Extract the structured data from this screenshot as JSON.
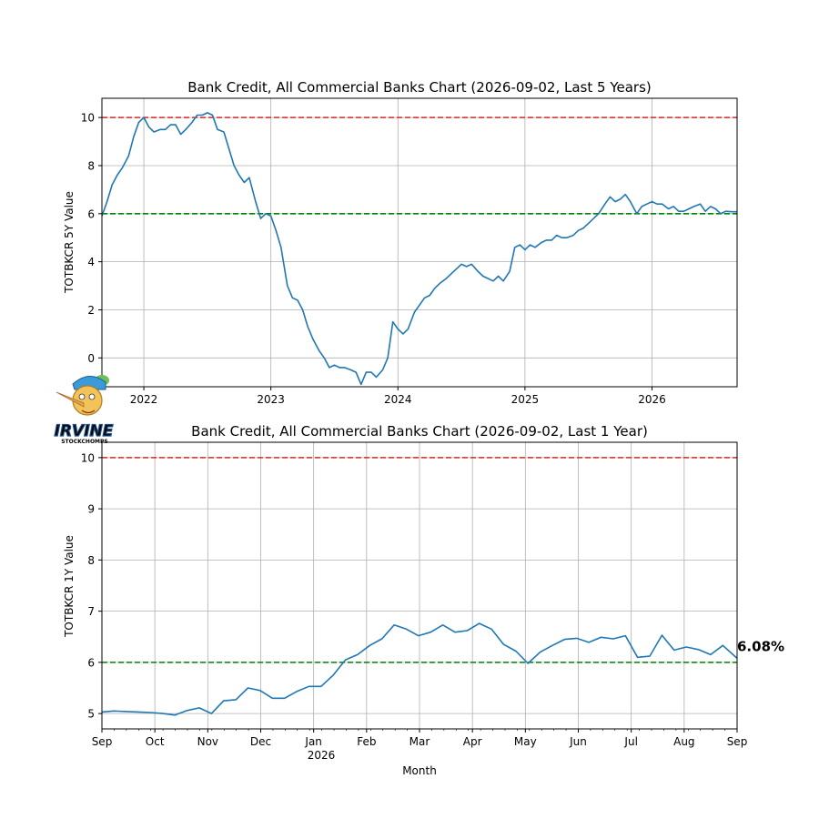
{
  "charts": [
    {
      "title": "Bank Credit, All Commercial Banks Chart (2026-09-02, Last 5 Years)",
      "ylabel": "TOTBKCR 5Y Value",
      "x_ticks": [
        "2022",
        "2023",
        "2024",
        "2025",
        "2026"
      ],
      "y_ticks": [
        "0",
        "2",
        "4",
        "6",
        "8",
        "10"
      ]
    },
    {
      "title": "Bank Credit, All Commercial Banks Chart (2026-09-02, Last 1 Year)",
      "ylabel": "TOTBKCR 1Y Value",
      "xlabel": "Month",
      "x_ticks": [
        "Sep",
        "Oct",
        "Nov",
        "Dec",
        "Jan",
        "Feb",
        "Mar",
        "Apr",
        "May",
        "Jun",
        "Jul",
        "Aug",
        "Sep"
      ],
      "year_label": "2026",
      "y_ticks": [
        "5",
        "6",
        "7",
        "8",
        "9",
        "10"
      ],
      "last_value_label": "6.08%"
    }
  ],
  "logo": {
    "text": "IRVINE",
    "subtext": "STOCKCHOMPS"
  },
  "colors": {
    "line": "#1f77b4",
    "upper_ref": "#d62728",
    "lower_ref": "#008000",
    "grid": "#b0b0b0"
  },
  "chart_data": [
    {
      "type": "line",
      "title": "Bank Credit, All Commercial Banks Chart (2026-09-02, Last 5 Years)",
      "xlabel": "",
      "ylabel": "TOTBKCR 5Y Value",
      "xlim": [
        2021.67,
        2026.67
      ],
      "ylim": [
        -1.2,
        10.8
      ],
      "grid": true,
      "reference_lines": [
        {
          "y": 10,
          "color": "#d62728",
          "style": "dashed"
        },
        {
          "y": 6,
          "color": "#008000",
          "style": "dashed"
        }
      ],
      "x": [
        2021.67,
        2021.71,
        2021.75,
        2021.79,
        2021.83,
        2021.88,
        2021.92,
        2021.96,
        2022.0,
        2022.04,
        2022.08,
        2022.13,
        2022.17,
        2022.21,
        2022.25,
        2022.29,
        2022.33,
        2022.38,
        2022.42,
        2022.46,
        2022.5,
        2022.54,
        2022.58,
        2022.63,
        2022.67,
        2022.71,
        2022.75,
        2022.79,
        2022.83,
        2022.88,
        2022.92,
        2022.96,
        2023.0,
        2023.04,
        2023.08,
        2023.13,
        2023.17,
        2023.21,
        2023.25,
        2023.29,
        2023.33,
        2023.38,
        2023.42,
        2023.46,
        2023.5,
        2023.54,
        2023.58,
        2023.63,
        2023.67,
        2023.71,
        2023.75,
        2023.79,
        2023.83,
        2023.88,
        2023.92,
        2023.96,
        2024.0,
        2024.04,
        2024.08,
        2024.13,
        2024.17,
        2024.21,
        2024.25,
        2024.29,
        2024.33,
        2024.38,
        2024.42,
        2024.46,
        2024.5,
        2024.54,
        2024.58,
        2024.63,
        2024.67,
        2024.71,
        2024.75,
        2024.79,
        2024.83,
        2024.88,
        2024.92,
        2024.96,
        2025.0,
        2025.04,
        2025.08,
        2025.13,
        2025.17,
        2025.21,
        2025.25,
        2025.29,
        2025.33,
        2025.38,
        2025.42,
        2025.46,
        2025.5,
        2025.54,
        2025.58,
        2025.63,
        2025.67,
        2025.71,
        2025.75,
        2025.79,
        2025.83,
        2025.88,
        2025.92,
        2025.96,
        2026.0,
        2026.04,
        2026.08,
        2026.13,
        2026.17,
        2026.21,
        2026.25,
        2026.29,
        2026.33,
        2026.38,
        2026.42,
        2026.46,
        2026.5,
        2026.54,
        2026.58,
        2026.63,
        2026.67
      ],
      "values": [
        5.9,
        6.5,
        7.2,
        7.6,
        7.9,
        8.4,
        9.2,
        9.8,
        10.0,
        9.6,
        9.4,
        9.5,
        9.5,
        9.7,
        9.7,
        9.3,
        9.5,
        9.8,
        10.1,
        10.1,
        10.2,
        10.1,
        9.5,
        9.4,
        8.7,
        8.0,
        7.6,
        7.3,
        7.5,
        6.5,
        5.8,
        6.0,
        5.9,
        5.3,
        4.6,
        3.0,
        2.5,
        2.4,
        2.0,
        1.3,
        0.8,
        0.3,
        0.0,
        -0.4,
        -0.3,
        -0.4,
        -0.4,
        -0.5,
        -0.6,
        -1.1,
        -0.6,
        -0.6,
        -0.8,
        -0.5,
        0.0,
        1.5,
        1.2,
        1.0,
        1.2,
        1.9,
        2.2,
        2.5,
        2.6,
        2.9,
        3.1,
        3.3,
        3.5,
        3.7,
        3.9,
        3.8,
        3.9,
        3.6,
        3.4,
        3.3,
        3.2,
        3.4,
        3.2,
        3.6,
        4.6,
        4.7,
        4.5,
        4.7,
        4.6,
        4.8,
        4.9,
        4.9,
        5.1,
        5.0,
        5.0,
        5.1,
        5.3,
        5.4,
        5.6,
        5.8,
        6.0,
        6.4,
        6.7,
        6.5,
        6.6,
        6.8,
        6.5,
        6.0,
        6.3,
        6.4,
        6.5,
        6.4,
        6.4,
        6.2,
        6.3,
        6.1,
        6.1,
        6.2,
        6.3,
        6.4,
        6.1,
        6.3,
        6.2,
        6.0,
        6.1,
        6.08,
        6.08
      ]
    },
    {
      "type": "line",
      "title": "Bank Credit, All Commercial Banks Chart (2026-09-02, Last 1 Year)",
      "xlabel": "Month",
      "ylabel": "TOTBKCR 1Y Value",
      "xlim": [
        0,
        12
      ],
      "ylim": [
        4.7,
        10.3
      ],
      "grid": true,
      "reference_lines": [
        {
          "y": 10,
          "color": "#d62728",
          "style": "dashed"
        },
        {
          "y": 6,
          "color": "#008000",
          "style": "dashed"
        }
      ],
      "annotation": "6.08%",
      "x": [
        0.0,
        0.23,
        0.46,
        0.69,
        0.92,
        1.15,
        1.38,
        1.61,
        1.84,
        2.07,
        2.3,
        2.53,
        2.76,
        2.99,
        3.22,
        3.45,
        3.68,
        3.91,
        4.14,
        4.37,
        4.6,
        4.83,
        5.06,
        5.29,
        5.52,
        5.75,
        5.98,
        6.21,
        6.44,
        6.67,
        6.9,
        7.13,
        7.36,
        7.59,
        7.82,
        8.05,
        8.28,
        8.51,
        8.74,
        8.97,
        9.2,
        9.43,
        9.66,
        9.89,
        10.12,
        10.35,
        10.58,
        10.81,
        11.04,
        11.27,
        11.5,
        11.73,
        12.0
      ],
      "values": [
        5.03,
        5.05,
        5.04,
        5.03,
        5.02,
        5.0,
        4.97,
        5.06,
        5.11,
        5.0,
        5.25,
        5.27,
        5.5,
        5.45,
        5.3,
        5.3,
        5.43,
        5.53,
        5.53,
        5.75,
        6.05,
        6.15,
        6.33,
        6.46,
        6.73,
        6.65,
        6.52,
        6.59,
        6.73,
        6.59,
        6.62,
        6.76,
        6.65,
        6.35,
        6.22,
        5.98,
        6.2,
        6.33,
        6.45,
        6.47,
        6.39,
        6.49,
        6.46,
        6.52,
        6.1,
        6.12,
        6.53,
        6.24,
        6.3,
        6.25,
        6.15,
        6.33,
        6.08
      ]
    }
  ]
}
